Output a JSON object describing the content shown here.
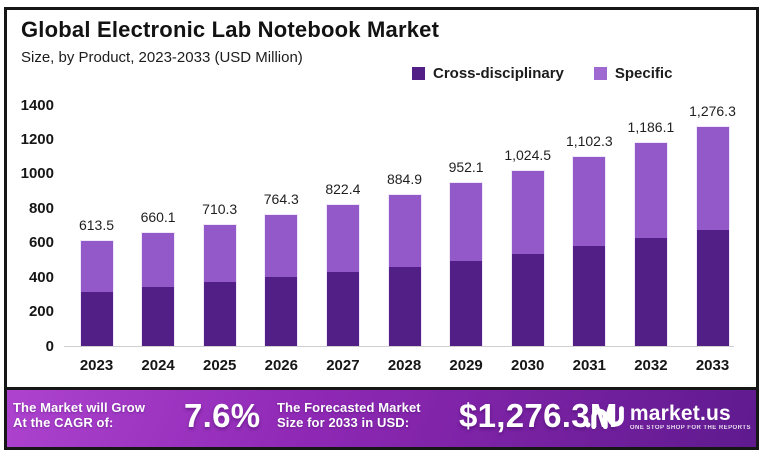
{
  "header": {
    "title": "Global Electronic Lab Notebook Market",
    "subtitle": "Size, by Product, 2023-2033 (USD Million)"
  },
  "legend": [
    {
      "label": "Cross-disciplinary",
      "color": "#521f86"
    },
    {
      "label": "Specific",
      "color": "#9e6ad2"
    }
  ],
  "chart_data": {
    "type": "bar",
    "stacked": true,
    "title": "Global Electronic Lab Notebook Market",
    "subtitle": "Size, by Product, 2023-2033 (USD Million)",
    "xlabel": "",
    "ylabel": "USD Million",
    "ylim": [
      0,
      1400
    ],
    "yticks": [
      0,
      200,
      400,
      600,
      800,
      1000,
      1200,
      1400
    ],
    "grid": false,
    "legend_position": "top-right",
    "categories": [
      "2023",
      "2024",
      "2025",
      "2026",
      "2027",
      "2028",
      "2029",
      "2030",
      "2031",
      "2032",
      "2033"
    ],
    "series": [
      {
        "name": "Cross-disciplinary",
        "color": "#521f86",
        "values": [
          320,
          348,
          376,
          404,
          433,
          466,
          500,
          542,
          588,
          634,
          678
        ]
      },
      {
        "name": "Specific",
        "color": "#9459c9",
        "values": [
          293.5,
          312.1,
          334.3,
          360.3,
          389.4,
          418.9,
          452.1,
          482.5,
          514.3,
          552.1,
          598.3
        ]
      }
    ],
    "totals": [
      613.5,
      660.1,
      710.3,
      764.3,
      822.4,
      884.9,
      952.1,
      1024.5,
      1102.3,
      1186.1,
      1276.3
    ],
    "total_labels": [
      "613.5",
      "660.1",
      "710.3",
      "764.3",
      "822.4",
      "884.9",
      "952.1",
      "1,024.5",
      "1,102.3",
      "1,186.1",
      "1,276.3"
    ]
  },
  "footer": {
    "cagr_label_line1": "The Market will Grow",
    "cagr_label_line2": "At the CAGR of:",
    "cagr_value": "7.6%",
    "forecast_label_line1": "The Forecasted Market",
    "forecast_label_line2": "Size for 2033 in USD:",
    "forecast_value": "$1,276.3M",
    "brand_name": "market.us",
    "brand_tagline": "ONE STOP SHOP FOR THE REPORTS"
  },
  "colors": {
    "cross": "#521f86",
    "specific": "#9459c9",
    "footer_gradient_start": "#ad43cf",
    "footer_gradient_mid": "#8e28b4",
    "footer_gradient_end": "#5f1a8e",
    "frame_border": "#161616",
    "baseline": "#cfcfcf",
    "footer_text": "#ffffff"
  }
}
